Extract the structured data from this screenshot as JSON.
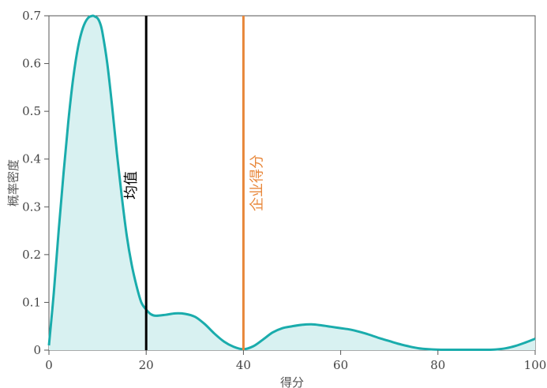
{
  "chart_data": {
    "type": "area",
    "xlabel": "得分",
    "ylabel": "概率密度",
    "xlim": [
      0,
      100
    ],
    "ylim": [
      0,
      0.7
    ],
    "x_ticks": [
      0,
      20,
      40,
      60,
      80,
      100
    ],
    "y_ticks": [
      0,
      0.1,
      0.2,
      0.3,
      0.4,
      0.5,
      0.6,
      0.7
    ],
    "grid": false,
    "series": [
      {
        "x": [
          0,
          1,
          2,
          3,
          4,
          5,
          6,
          7,
          8,
          9,
          9.5,
          10,
          10.5,
          11,
          12,
          13,
          14,
          15,
          16,
          17,
          18,
          19,
          20,
          21,
          22,
          24,
          26,
          28,
          30,
          32,
          34,
          36,
          38,
          40,
          42,
          44,
          46,
          48,
          50,
          52,
          54,
          56,
          58,
          60,
          62,
          64,
          66,
          68,
          70,
          72,
          74,
          76,
          78,
          80,
          82,
          84,
          86,
          88,
          90,
          92,
          94,
          96,
          98,
          100
        ],
        "y": [
          0.01,
          0.12,
          0.25,
          0.37,
          0.48,
          0.57,
          0.635,
          0.675,
          0.695,
          0.7,
          0.698,
          0.695,
          0.685,
          0.665,
          0.6,
          0.51,
          0.41,
          0.32,
          0.24,
          0.18,
          0.135,
          0.1,
          0.085,
          0.075,
          0.072,
          0.074,
          0.077,
          0.076,
          0.07,
          0.055,
          0.035,
          0.018,
          0.007,
          0.002,
          0.008,
          0.022,
          0.037,
          0.046,
          0.05,
          0.053,
          0.054,
          0.052,
          0.049,
          0.046,
          0.043,
          0.038,
          0.032,
          0.025,
          0.019,
          0.013,
          0.008,
          0.004,
          0.002,
          0.001,
          0.0008,
          0.0008,
          0.0008,
          0.0008,
          0.0008,
          0.0015,
          0.004,
          0.009,
          0.016,
          0.024
        ],
        "line_color": "#1aacac",
        "fill_color": "#d8f1f1"
      }
    ],
    "reference_lines": [
      {
        "x": 20,
        "label": "均值",
        "color": "#000000"
      },
      {
        "x": 40,
        "label": "企业得分",
        "color": "#e8873a"
      }
    ]
  }
}
